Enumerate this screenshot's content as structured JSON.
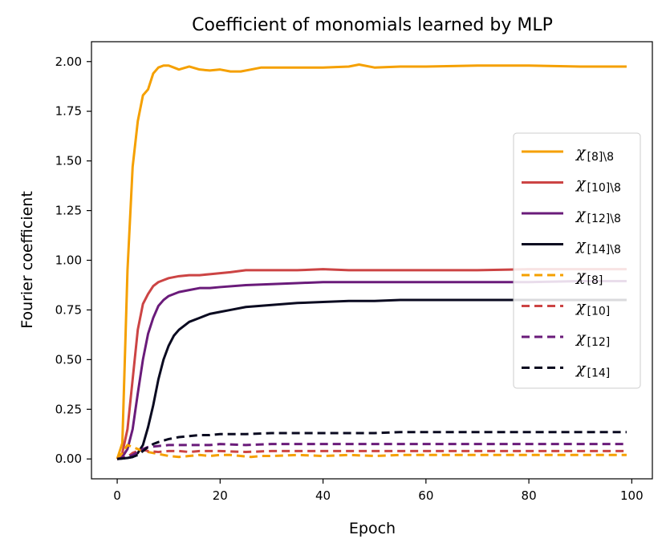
{
  "chart_data": {
    "type": "line",
    "title": "Coefficient of monomials learned by MLP",
    "xlabel": "Epoch",
    "ylabel": "Fourier coefficient",
    "xlim": [
      -5,
      104
    ],
    "ylim": [
      -0.1,
      2.1
    ],
    "xticks": [
      0,
      20,
      40,
      60,
      80,
      100
    ],
    "yticks": [
      0.0,
      0.25,
      0.5,
      0.75,
      1.0,
      1.25,
      1.5,
      1.75,
      2.0
    ],
    "xtick_labels": [
      "0",
      "20",
      "40",
      "60",
      "80",
      "100"
    ],
    "ytick_labels": [
      "0.00",
      "0.25",
      "0.50",
      "0.75",
      "1.00",
      "1.25",
      "1.50",
      "1.75",
      "2.00"
    ],
    "grid": false,
    "legend_position": "center-right",
    "series": [
      {
        "name": "χ[8]\\8",
        "label_main": "χ",
        "label_sub": "[8]\\8",
        "color": "#f5a000",
        "style": "solid",
        "x": [
          0,
          1,
          2,
          3,
          4,
          5,
          6,
          7,
          8,
          9,
          10,
          11,
          12,
          14,
          16,
          18,
          20,
          22,
          24,
          26,
          28,
          30,
          35,
          40,
          45,
          47,
          50,
          55,
          60,
          70,
          80,
          90,
          99
        ],
        "y": [
          0,
          0.08,
          0.95,
          1.47,
          1.7,
          1.83,
          1.86,
          1.94,
          1.97,
          1.98,
          1.98,
          1.97,
          1.96,
          1.975,
          1.96,
          1.955,
          1.96,
          1.95,
          1.95,
          1.96,
          1.97,
          1.97,
          1.97,
          1.97,
          1.975,
          1.985,
          1.97,
          1.975,
          1.975,
          1.98,
          1.98,
          1.975,
          1.975
        ]
      },
      {
        "name": "χ[10]\\8",
        "label_main": "χ",
        "label_sub": "[10]\\8",
        "color": "#cc4444",
        "style": "solid",
        "x": [
          0,
          1,
          2,
          3,
          4,
          5,
          6,
          7,
          8,
          9,
          10,
          12,
          14,
          16,
          18,
          20,
          22,
          25,
          30,
          35,
          40,
          45,
          50,
          55,
          60,
          70,
          80,
          90,
          99
        ],
        "y": [
          0,
          0.03,
          0.15,
          0.4,
          0.65,
          0.78,
          0.83,
          0.87,
          0.89,
          0.9,
          0.91,
          0.92,
          0.925,
          0.925,
          0.93,
          0.935,
          0.94,
          0.95,
          0.95,
          0.95,
          0.955,
          0.95,
          0.95,
          0.95,
          0.95,
          0.95,
          0.955,
          0.955,
          0.955
        ]
      },
      {
        "name": "χ[12]\\8",
        "label_main": "χ",
        "label_sub": "[12]\\8",
        "color": "#6a1b7a",
        "style": "solid",
        "x": [
          0,
          1,
          2,
          3,
          4,
          5,
          6,
          7,
          8,
          9,
          10,
          11,
          12,
          14,
          16,
          18,
          20,
          25,
          30,
          35,
          40,
          45,
          50,
          55,
          60,
          70,
          80,
          90,
          99
        ],
        "y": [
          0,
          0.01,
          0.05,
          0.15,
          0.33,
          0.5,
          0.63,
          0.71,
          0.77,
          0.8,
          0.82,
          0.83,
          0.84,
          0.85,
          0.86,
          0.86,
          0.865,
          0.875,
          0.88,
          0.885,
          0.89,
          0.89,
          0.89,
          0.89,
          0.89,
          0.89,
          0.89,
          0.895,
          0.895
        ]
      },
      {
        "name": "χ[14]\\8",
        "label_main": "χ",
        "label_sub": "[14]\\8",
        "color": "#0a0a20",
        "style": "solid",
        "x": [
          0,
          2,
          3,
          4,
          5,
          6,
          7,
          8,
          9,
          10,
          11,
          12,
          14,
          16,
          18,
          20,
          22,
          25,
          30,
          35,
          40,
          45,
          50,
          55,
          60,
          70,
          80,
          90,
          99
        ],
        "y": [
          0,
          0.005,
          0.01,
          0.03,
          0.07,
          0.16,
          0.27,
          0.4,
          0.5,
          0.57,
          0.62,
          0.65,
          0.69,
          0.71,
          0.73,
          0.74,
          0.75,
          0.765,
          0.775,
          0.785,
          0.79,
          0.795,
          0.795,
          0.8,
          0.8,
          0.8,
          0.8,
          0.8,
          0.8
        ]
      },
      {
        "name": "χ[8]",
        "label_main": "χ",
        "label_sub": "[8]",
        "color": "#f5a000",
        "style": "dashed",
        "x": [
          0,
          1,
          2,
          3,
          4,
          5,
          6,
          7,
          8,
          10,
          12,
          14,
          16,
          18,
          20,
          22,
          24,
          26,
          28,
          30,
          35,
          40,
          45,
          50,
          55,
          60,
          70,
          80,
          90,
          99
        ],
        "y": [
          0,
          0.03,
          0.07,
          0.06,
          0.05,
          0.04,
          0.035,
          0.03,
          0.025,
          0.015,
          0.01,
          0.015,
          0.02,
          0.015,
          0.02,
          0.02,
          0.015,
          0.01,
          0.015,
          0.015,
          0.02,
          0.015,
          0.02,
          0.015,
          0.02,
          0.02,
          0.02,
          0.02,
          0.02,
          0.02
        ]
      },
      {
        "name": "χ[10]",
        "label_main": "χ",
        "label_sub": "[10]",
        "color": "#cc4444",
        "style": "dashed",
        "x": [
          0,
          2,
          3,
          4,
          5,
          6,
          8,
          10,
          12,
          14,
          16,
          18,
          20,
          25,
          30,
          35,
          40,
          45,
          50,
          60,
          70,
          80,
          90,
          99
        ],
        "y": [
          0,
          0.01,
          0.03,
          0.04,
          0.045,
          0.04,
          0.035,
          0.04,
          0.04,
          0.035,
          0.04,
          0.04,
          0.04,
          0.035,
          0.04,
          0.04,
          0.04,
          0.04,
          0.04,
          0.04,
          0.04,
          0.04,
          0.04,
          0.04
        ]
      },
      {
        "name": "χ[12]",
        "label_main": "χ",
        "label_sub": "[12]",
        "color": "#6a1b7a",
        "style": "dashed",
        "x": [
          0,
          2,
          3,
          4,
          5,
          6,
          8,
          10,
          12,
          14,
          16,
          18,
          20,
          25,
          30,
          35,
          40,
          45,
          50,
          60,
          70,
          80,
          90,
          99
        ],
        "y": [
          0,
          0.01,
          0.02,
          0.035,
          0.05,
          0.06,
          0.065,
          0.07,
          0.07,
          0.07,
          0.07,
          0.07,
          0.075,
          0.07,
          0.075,
          0.075,
          0.075,
          0.075,
          0.075,
          0.075,
          0.075,
          0.075,
          0.075,
          0.075
        ]
      },
      {
        "name": "χ[14]",
        "label_main": "χ",
        "label_sub": "[14]",
        "color": "#0a0a20",
        "style": "dashed",
        "x": [
          0,
          2,
          3,
          4,
          5,
          6,
          7,
          8,
          10,
          12,
          14,
          16,
          18,
          20,
          22,
          25,
          30,
          35,
          40,
          45,
          50,
          55,
          60,
          70,
          80,
          90,
          99
        ],
        "y": [
          0,
          0.005,
          0.01,
          0.02,
          0.04,
          0.06,
          0.075,
          0.085,
          0.1,
          0.11,
          0.115,
          0.12,
          0.12,
          0.125,
          0.125,
          0.125,
          0.13,
          0.13,
          0.13,
          0.13,
          0.13,
          0.135,
          0.135,
          0.135,
          0.135,
          0.135,
          0.135
        ]
      }
    ]
  }
}
